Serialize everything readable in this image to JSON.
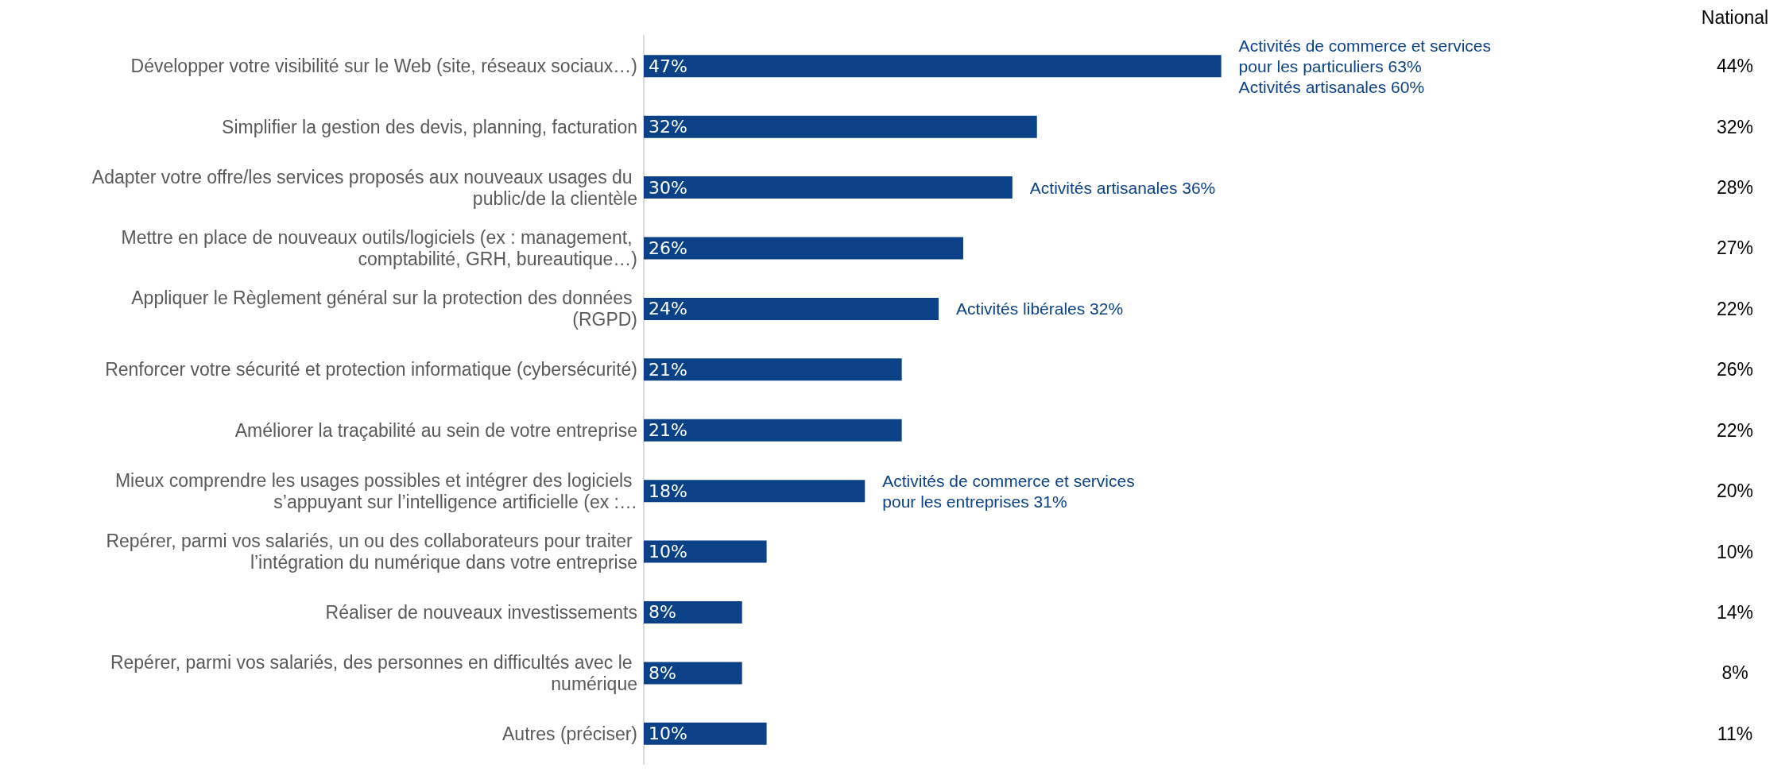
{
  "chart_data": {
    "type": "bar",
    "orientation": "horizontal",
    "tick_labels": "y",
    "grid": false,
    "categories": [
      "Développer votre visibilité sur le Web (site, réseaux sociaux…)",
      "Simplifier la gestion des devis, planning, facturation",
      "Adapter votre offre/les services proposés aux nouveaux usages du public/de la clientèle",
      "Mettre en place de nouveaux outils/logiciels (ex : management, comptabilité, GRH, bureautique…)",
      "Appliquer le Règlement général sur la protection des données (RGPD)",
      "Renforcer votre sécurité et protection informatique (cybersécurité)",
      "Améliorer la traçabilité au sein de votre entreprise",
      "Mieux comprendre les usages possibles et intégrer des logiciels s’appuyant sur l’intelligence artificielle (ex :…",
      "Repérer, parmi vos salariés, un ou des collaborateurs pour traiter l’intégration du numérique dans votre entreprise",
      "Réaliser de nouveaux investissements",
      "Repérer, parmi vos salariés, des personnes en difficultés avec le numérique",
      "Autres (préciser)"
    ],
    "series": [
      {
        "color": "#0b4287",
        "values": [
          47,
          32,
          30,
          26,
          24,
          21,
          21,
          18,
          10,
          8,
          8,
          10
        ],
        "value_labels": [
          "47%",
          "32%",
          "30%",
          "26%",
          "24%",
          "21%",
          "21%",
          "18%",
          "10%",
          "8%",
          "8%",
          "10%"
        ]
      }
    ],
    "annotations": [
      {
        "text": "Activités de commerce et services pour les particuliers 63%",
        "x": 47,
        "y": "Développer votre visibilité sur le Web (site, réseaux sociaux…)"
      },
      {
        "text": "Activités artisanales 60%",
        "x": 47,
        "y": "Développer votre visibilité sur le Web (site, réseaux sociaux…)"
      },
      {
        "text": "Activités artisanales 36%",
        "x": 30,
        "y": "Adapter votre offre/les services proposés aux nouveaux usages du public/de la clientèle"
      },
      {
        "text": "Activités libérales 32%",
        "x": 24,
        "y": "Appliquer le Règlement général sur la protection des données (RGPD)"
      },
      {
        "text": "Activités de commerce et services pour les entreprises 31%",
        "x": 18,
        "y": "Mieux comprendre les usages possibles et intégrer des logiciels s’appuyant sur l’intelligence artificielle (ex :…"
      },
      "National",
      "44%",
      "32%",
      "28%",
      "27%",
      "22%",
      "26%",
      "22%",
      "20%",
      "10%",
      "14%",
      "8%",
      "11%"
    ]
  }
}
